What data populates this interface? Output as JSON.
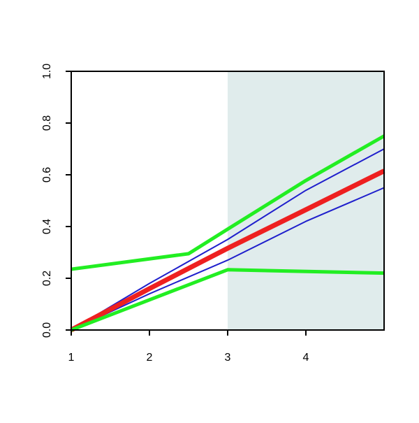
{
  "chart_data": {
    "type": "line",
    "xlim": [
      1,
      5
    ],
    "ylim": [
      0,
      1
    ],
    "xticks": [
      1,
      2,
      3,
      4
    ],
    "yticks": [
      {
        "value": 0,
        "label": "0.0"
      },
      {
        "value": 0.2,
        "label": "0.2"
      },
      {
        "value": 0.4,
        "label": "0.4"
      },
      {
        "value": 0.6,
        "label": "0.6"
      },
      {
        "value": 0.8,
        "label": "0.8"
      },
      {
        "value": 1,
        "label": "1.0"
      }
    ],
    "shaded_region": [
      3,
      5
    ],
    "shade_color": "#e0ecec",
    "series": [
      {
        "color": "#1f1fcc",
        "width": 2,
        "x": [
          1,
          2,
          3,
          4,
          5
        ],
        "values": [
          0,
          0.18,
          0.35,
          0.54,
          0.7
        ]
      },
      {
        "color": "#1f1fcc",
        "width": 2,
        "x": [
          1,
          2,
          3,
          4,
          5
        ],
        "values": [
          0,
          0.14,
          0.27,
          0.42,
          0.55
        ]
      },
      {
        "color": "#1f1fcc",
        "width": 2,
        "x": [
          1,
          2,
          3,
          4,
          5
        ],
        "values": [
          0,
          0.16,
          0.31,
          0.46,
          0.61
        ]
      },
      {
        "color": "#ee2020",
        "width": 7,
        "x": [
          1,
          2,
          3,
          4,
          5
        ],
        "values": [
          0,
          0.16,
          0.316,
          0.465,
          0.615
        ]
      },
      {
        "color": "#22ee22",
        "width": 5,
        "x": [
          1,
          2.5,
          3,
          4,
          5
        ],
        "values": [
          0.235,
          0.295,
          0.39,
          0.578,
          0.75
        ]
      },
      {
        "color": "#22ee22",
        "width": 5,
        "x": [
          1,
          3,
          5
        ],
        "values": [
          0,
          0.233,
          0.22
        ]
      }
    ]
  }
}
